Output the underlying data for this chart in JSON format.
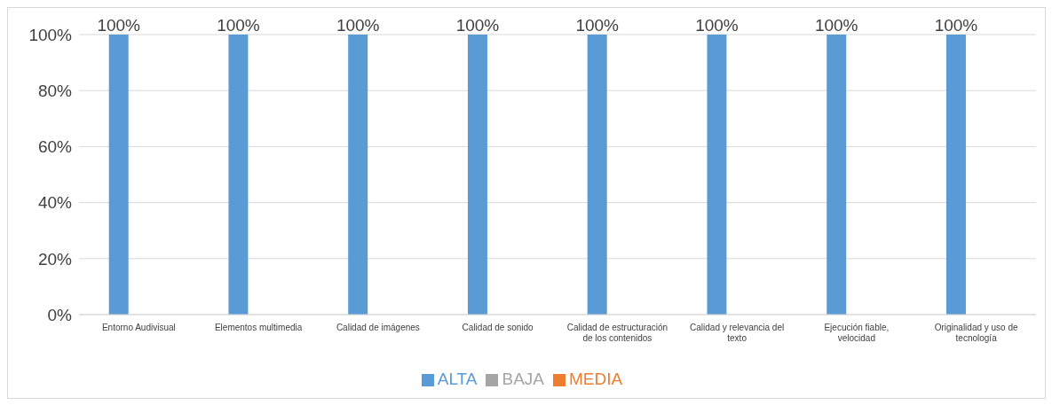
{
  "chart_data": {
    "type": "bar",
    "categories": [
      "Entorno Audivisual",
      "Elementos multimedia",
      "Calidad de imágenes",
      "Calidad de sonido",
      "Calidad de estructuración de los contenidos",
      "Calidad y relevancia del texto",
      "Ejecución fiable, velocidad",
      "Originalidad y uso de tecnología"
    ],
    "series": [
      {
        "name": "ALTA",
        "color": "#5b9bd5",
        "values": [
          100,
          100,
          100,
          100,
          100,
          100,
          100,
          100
        ],
        "value_labels": [
          "100%",
          "100%",
          "100%",
          "100%",
          "100%",
          "100%",
          "100%",
          "100%"
        ]
      },
      {
        "name": "MEDIA",
        "color": "#ed7d31",
        "values": [
          0,
          0,
          0,
          0,
          0,
          0,
          0,
          0
        ]
      },
      {
        "name": "BAJA",
        "color": "#a5a5a5",
        "values": [
          0,
          0,
          0,
          0,
          0,
          0,
          0,
          0
        ]
      }
    ],
    "ylim": [
      0,
      100
    ],
    "yticks": [
      {
        "value": 0,
        "label": "0%"
      },
      {
        "value": 20,
        "label": "20%"
      },
      {
        "value": 40,
        "label": "40%"
      },
      {
        "value": 60,
        "label": "60%"
      },
      {
        "value": 80,
        "label": "80%"
      },
      {
        "value": 100,
        "label": "100%"
      }
    ],
    "grid": "y",
    "legend": "bottom"
  }
}
